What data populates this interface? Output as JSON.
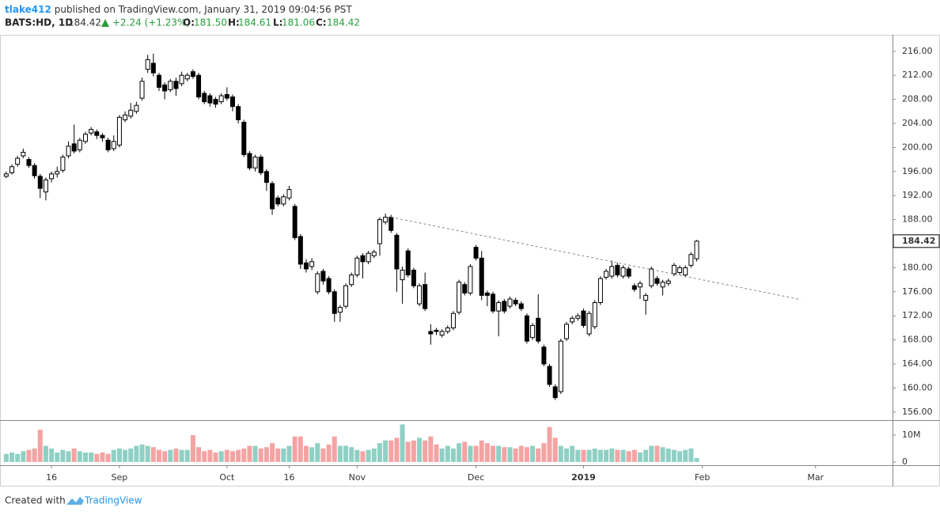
{
  "header": {
    "author": "tlake412",
    "published": "published on TradingView.com, January 31, 2019 09:04:56 PST",
    "symbol": "BATS:HD, 1D",
    "last": "184.42",
    "change": "+2.24 (+1.23%)",
    "o_label": "O:",
    "o": "181.50",
    "h_label": "H:",
    "h": "184.61",
    "l_label": "L:",
    "l": "181.06",
    "c_label": "C:",
    "c": "184.42"
  },
  "footer": {
    "created": "Created with",
    "brand": "TradingView"
  },
  "chart_data": {
    "type": "candlestick",
    "up_color": "#ffffff",
    "down_color": "#000000",
    "volume_up_color": "#8fd0c4",
    "volume_down_color": "#f4a3a3",
    "open": [
      195.2,
      195.8,
      197.2,
      198.6,
      198.0,
      197.0,
      195.2,
      192.6,
      194.8,
      195.6,
      196.2,
      198.6,
      200.6,
      199.6,
      201.0,
      202.4,
      202.6,
      202.0,
      201.2,
      199.8,
      200.4,
      204.6,
      205.2,
      206.0,
      208.2,
      213.0,
      214.0,
      212.0,
      210.4,
      209.6,
      211.0,
      210.6,
      211.4,
      212.6,
      212.0,
      209.0,
      208.6,
      208.0,
      207.6,
      208.8,
      208.4,
      206.8,
      204.2,
      199.0,
      196.6,
      198.4,
      196.0,
      194.0,
      191.6,
      190.6,
      191.6,
      190.2,
      185.2,
      180.8,
      180.2,
      176.0,
      179.4,
      178.2,
      176.0,
      172.6,
      173.6,
      177.2,
      178.8,
      182.0,
      181.0,
      182.0,
      184.0,
      187.6,
      188.4,
      185.4,
      178.0,
      182.8,
      179.6,
      174.0,
      177.2,
      169.4,
      169.6,
      168.8,
      169.4,
      170.0,
      172.6,
      177.2,
      175.8,
      183.4,
      181.6,
      175.8,
      175.6,
      172.8,
      174.4,
      173.6,
      174.6,
      174.0,
      172.0,
      168.4,
      171.6,
      166.8,
      163.6,
      160.2,
      159.4,
      168.2,
      171.0,
      171.6,
      172.8,
      169.0,
      170.2,
      174.2,
      178.4,
      178.6,
      180.4,
      178.6,
      179.8,
      177.0,
      176.8,
      174.6,
      177.0,
      178.2,
      176.8,
      177.4,
      179.0,
      179.2,
      178.8,
      180.4,
      181.5
    ],
    "high": [
      196.0,
      197.2,
      198.6,
      199.8,
      198.4,
      197.4,
      195.6,
      195.0,
      196.0,
      196.8,
      198.8,
      201.0,
      203.8,
      201.6,
      202.6,
      203.4,
      203.0,
      202.4,
      201.6,
      202.0,
      205.4,
      206.0,
      207.4,
      207.6,
      211.6,
      215.4,
      215.6,
      212.4,
      210.8,
      211.4,
      211.6,
      212.6,
      212.4,
      213.0,
      212.4,
      209.4,
      209.0,
      208.4,
      209.0,
      210.0,
      208.8,
      207.2,
      204.6,
      199.4,
      198.8,
      198.8,
      196.4,
      194.4,
      192.0,
      192.2,
      193.6,
      190.6,
      185.6,
      181.4,
      181.6,
      179.4,
      179.8,
      178.6,
      176.4,
      173.8,
      177.4,
      179.2,
      182.0,
      182.4,
      182.8,
      183.0,
      188.4,
      189.0,
      188.8,
      185.8,
      180.2,
      183.2,
      180.0,
      177.4,
      179.2,
      170.6,
      170.0,
      169.8,
      170.4,
      172.8,
      178.0,
      177.6,
      180.6,
      183.8,
      182.8,
      176.2,
      176.0,
      174.6,
      174.8,
      175.2,
      175.0,
      174.4,
      172.4,
      170.8,
      175.6,
      167.2,
      164.0,
      160.6,
      168.2,
      171.0,
      172.0,
      172.4,
      173.2,
      172.8,
      174.6,
      178.6,
      179.8,
      181.2,
      180.8,
      180.4,
      180.2,
      177.4,
      177.8,
      175.8,
      180.2,
      178.6,
      178.0,
      178.2,
      180.8,
      180.4,
      180.4,
      182.6,
      184.61
    ],
    "low": [
      194.9,
      195.5,
      196.8,
      198.2,
      196.6,
      194.8,
      191.6,
      191.2,
      194.2,
      195.0,
      195.8,
      198.2,
      199.0,
      199.2,
      200.6,
      202.0,
      201.4,
      201.0,
      199.2,
      199.4,
      200.0,
      204.2,
      204.8,
      205.6,
      207.8,
      212.4,
      211.8,
      209.4,
      208.0,
      209.2,
      208.6,
      210.2,
      211.0,
      211.4,
      208.0,
      207.2,
      206.8,
      206.6,
      207.2,
      207.8,
      206.0,
      204.0,
      198.4,
      196.2,
      196.0,
      195.4,
      192.8,
      188.8,
      190.2,
      190.2,
      191.2,
      184.6,
      179.8,
      179.2,
      179.6,
      175.6,
      177.2,
      175.6,
      171.0,
      171.0,
      173.2,
      176.8,
      178.4,
      178.2,
      180.6,
      181.6,
      182.0,
      187.2,
      185.8,
      176.0,
      174.0,
      178.4,
      176.6,
      173.6,
      172.8,
      167.2,
      168.8,
      168.4,
      169.0,
      169.6,
      172.2,
      175.4,
      175.4,
      181.2,
      174.6,
      173.6,
      172.4,
      168.6,
      172.4,
      173.2,
      173.6,
      172.8,
      167.4,
      168.0,
      167.4,
      163.6,
      160.2,
      158.0,
      159.0,
      167.8,
      170.6,
      171.2,
      170.0,
      168.6,
      169.8,
      173.8,
      178.0,
      178.2,
      178.4,
      178.2,
      178.2,
      176.0,
      174.8,
      172.2,
      176.6,
      177.0,
      175.4,
      177.0,
      178.6,
      178.8,
      178.4,
      180.0,
      181.06
    ],
    "close": [
      195.6,
      196.8,
      198.2,
      199.2,
      197.0,
      195.3,
      193.2,
      194.6,
      195.6,
      196.0,
      198.4,
      200.2,
      199.4,
      201.2,
      202.2,
      203.0,
      202.0,
      201.6,
      199.6,
      201.0,
      205.0,
      205.4,
      206.2,
      207.0,
      211.0,
      214.6,
      212.4,
      210.0,
      209.4,
      211.0,
      209.8,
      212.0,
      212.0,
      211.8,
      208.4,
      207.6,
      207.4,
      207.2,
      208.6,
      208.2,
      206.8,
      204.6,
      198.8,
      196.6,
      198.4,
      195.8,
      194.2,
      189.8,
      190.6,
      191.8,
      193.0,
      185.0,
      180.6,
      179.8,
      181.0,
      179.0,
      177.8,
      176.0,
      172.4,
      173.4,
      177.0,
      178.8,
      181.6,
      181.0,
      182.4,
      182.6,
      188.0,
      188.4,
      186.2,
      179.8,
      179.6,
      178.8,
      177.0,
      177.0,
      173.2,
      169.0,
      169.4,
      169.4,
      170.0,
      172.4,
      177.6,
      175.8,
      180.2,
      181.6,
      175.4,
      175.4,
      172.8,
      174.2,
      172.8,
      174.8,
      174.0,
      173.2,
      167.8,
      170.4,
      167.8,
      164.0,
      160.6,
      158.4,
      167.8,
      170.6,
      171.6,
      172.0,
      170.4,
      172.4,
      174.2,
      178.2,
      179.4,
      180.2,
      178.8,
      180.0,
      178.6,
      176.4,
      177.4,
      175.4,
      179.8,
      177.4,
      177.6,
      177.8,
      180.4,
      180.0,
      180.0,
      182.2,
      184.42
    ],
    "volume": [
      3000000,
      3500000,
      3000000,
      4000000,
      4500000,
      5000000,
      12000000,
      6000000,
      5000000,
      3500000,
      4500000,
      4000000,
      5000000,
      4000000,
      3500000,
      3500000,
      3000000,
      3500000,
      3000000,
      4500000,
      5000000,
      4500000,
      5000000,
      6000000,
      6500000,
      6000000,
      5500000,
      4500000,
      4000000,
      4500000,
      5000000,
      4500000,
      4500000,
      10000000,
      5500000,
      4000000,
      4500000,
      3500000,
      4000000,
      4500000,
      4000000,
      4500000,
      5000000,
      6000000,
      6000000,
      5000000,
      5500000,
      7000000,
      5000000,
      5000000,
      6000000,
      9500000,
      9500000,
      6000000,
      5500000,
      7000000,
      5000000,
      6500000,
      9500000,
      6000000,
      6000000,
      5500000,
      4500000,
      4000000,
      4500000,
      5000000,
      7000000,
      8000000,
      8000000,
      9000000,
      14000000,
      7500000,
      8000000,
      9000000,
      8000000,
      9500000,
      6500000,
      5000000,
      6000000,
      5000000,
      7000000,
      7500000,
      6000000,
      6000000,
      8000000,
      7000000,
      6000000,
      6000000,
      5500000,
      5500000,
      5000000,
      6000000,
      5500000,
      6000000,
      5000000,
      7000000,
      13000000,
      9000000,
      6000000,
      5000000,
      6000000,
      4500000,
      4500000,
      4500000,
      5000000,
      4500000,
      4500000,
      5000000,
      4500000,
      4500000,
      4000000,
      4500000,
      3500000,
      4500000,
      6000000,
      6000000,
      5500000,
      5000000,
      4500000,
      4000000,
      4500000,
      5000000,
      1500000
    ],
    "xlim": [
      -1.1,
      156.6
    ],
    "xticks": [
      {
        "value": 8,
        "label": "16"
      },
      {
        "value": 20,
        "label": "Sep"
      },
      {
        "value": 39,
        "label": "Oct"
      },
      {
        "value": 50,
        "label": "16"
      },
      {
        "value": 62,
        "label": "Nov"
      },
      {
        "value": 83,
        "label": "Dec"
      },
      {
        "value": 102,
        "label": "2019"
      },
      {
        "value": 123,
        "label": "Feb"
      },
      {
        "value": 143,
        "label": "Mar"
      }
    ],
    "ylim": [
      154.8,
      218.6
    ],
    "yticks": [
      {
        "value": 156,
        "label": "156.00"
      },
      {
        "value": 160,
        "label": "160.00"
      },
      {
        "value": 164,
        "label": "164.00"
      },
      {
        "value": 168,
        "label": "168.00"
      },
      {
        "value": 172,
        "label": "172.00"
      },
      {
        "value": 176,
        "label": "176.00"
      },
      {
        "value": 180,
        "label": "180.00"
      },
      {
        "value": 184,
        "label": "184.00"
      },
      {
        "value": 188,
        "label": "188.00"
      },
      {
        "value": 192,
        "label": "192.00"
      },
      {
        "value": 196,
        "label": "196.00"
      },
      {
        "value": 200,
        "label": "200.00"
      },
      {
        "value": 204,
        "label": "204.00"
      },
      {
        "value": 208,
        "label": "208.00"
      },
      {
        "value": 212,
        "label": "212.00"
      },
      {
        "value": 216,
        "label": "216.00"
      }
    ],
    "volume_ylim": [
      -1200000,
      15300000
    ],
    "volume_yticks": [
      0,
      {
        "value": 10000000,
        "label": "10M"
      }
    ],
    "trendline": {
      "x": [
        68,
        140.4
      ],
      "y": [
        188.4,
        174.7
      ]
    }
  }
}
